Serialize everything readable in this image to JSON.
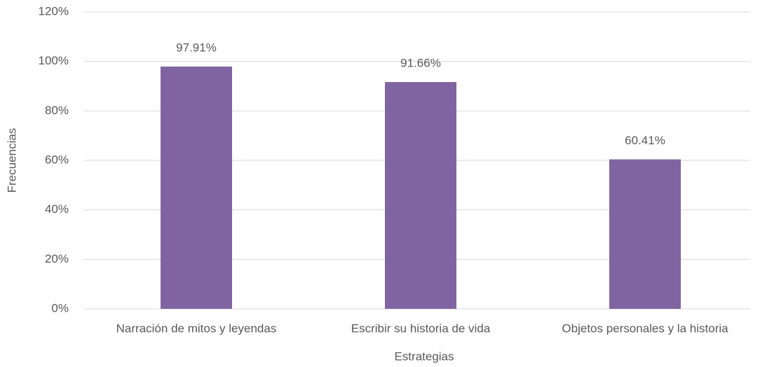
{
  "chart_data": {
    "type": "bar",
    "x_label": "Estrategias",
    "y_label": "Frecuencias",
    "categories": [
      "Narración de mitos y leyendas",
      "Escribir su historia de vida",
      "Objetos personales y la historia"
    ],
    "values": [
      97.91,
      91.66,
      60.41
    ],
    "value_labels": [
      "97.91%",
      "91.66%",
      "60.41%"
    ],
    "color": "#8064a2",
    "ylim": [
      0,
      120
    ],
    "yticks": [
      {
        "value": 0,
        "label": "0%"
      },
      {
        "value": 20,
        "label": "20%"
      },
      {
        "value": 40,
        "label": "40%"
      },
      {
        "value": 60,
        "label": "60%"
      },
      {
        "value": 80,
        "label": "80%"
      },
      {
        "value": 100,
        "label": "100%"
      },
      {
        "value": 120,
        "label": "120%"
      }
    ],
    "grid": true
  }
}
